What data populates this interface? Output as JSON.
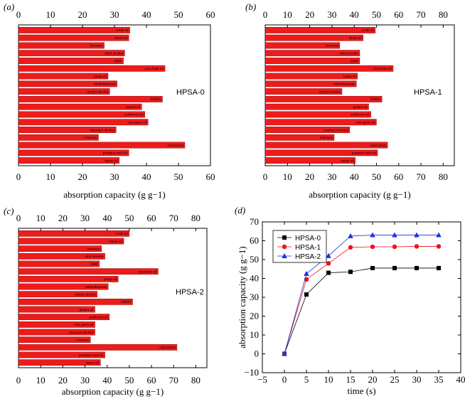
{
  "chart_data": [
    {
      "type": "bar",
      "orientation": "horizontal",
      "panel_label": "(a)",
      "annotation": "HPSA-0",
      "xlabel": "absorption capacity (g g−1)",
      "xlim": [
        0,
        60
      ],
      "ticks": [
        "0",
        "10",
        "20",
        "30",
        "40",
        "50",
        "60"
      ],
      "categories": [
        "crude oil",
        "diesel oil",
        "kerosene",
        "ethyl alcohol",
        "DMF",
        "soya bean oil",
        "pump oil",
        "methylbenzene",
        "methyl alcohol",
        "DMSO",
        "peanut oil",
        "sunflower oil",
        "corn germ oil",
        "isopropyl alcohol",
        "n-hexane",
        "chloroform",
        "pumpkin seed oil",
        "maize oil"
      ],
      "values": [
        34.8,
        34.5,
        26.8,
        33.2,
        32.8,
        45.8,
        28.0,
        30.8,
        28.5,
        45.0,
        38.5,
        39.5,
        40.5,
        30.5,
        25.0,
        52.0,
        34.5,
        31.5
      ]
    },
    {
      "type": "bar",
      "orientation": "horizontal",
      "panel_label": "(b)",
      "annotation": "HPSA-1",
      "xlabel": "absorption capacity (g g−1)",
      "xlim": [
        0,
        85
      ],
      "ticks": [
        "0",
        "10",
        "20",
        "30",
        "40",
        "50",
        "60",
        "70",
        "80"
      ],
      "categories": [
        "crude oil",
        "diesel oil",
        "kerosene",
        "ethyl alcohol",
        "DMF",
        "soya bean oil",
        "pump oil",
        "methylbenzene",
        "methyl alcohol",
        "DMSO",
        "peanut oil",
        "sunflower oil",
        "corn germ oil",
        "isopropyl alcohol",
        "n-hexane",
        "chloroform",
        "pumpkin seed oil",
        "maize oil"
      ],
      "values": [
        49.5,
        44.0,
        33.5,
        42.5,
        42.5,
        57.5,
        41.5,
        41.0,
        34.5,
        52.5,
        46.5,
        47.5,
        50.0,
        38.0,
        31.0,
        55.0,
        50.5,
        40.5
      ]
    },
    {
      "type": "bar",
      "orientation": "horizontal",
      "panel_label": "(c)",
      "annotation": "HPSA-2",
      "xlabel": "absorption capacity (g g−1)",
      "xlim": [
        0,
        85
      ],
      "ticks": [
        "0",
        "10",
        "20",
        "30",
        "40",
        "50",
        "60",
        "70",
        "80"
      ],
      "categories": [
        "crude oil",
        "diesel oil",
        "kerosene",
        "ethyl alcohol",
        "DMF",
        "soya bean oil",
        "pump oil",
        "methylbenzene",
        "methyl alcohol",
        "DMSO",
        "peanut oil",
        "sunflower oil",
        "corn germ oil",
        "isopropyl alcohol",
        "n-hexane",
        "chloroform",
        "pumpkin seed oil",
        "maize oil"
      ],
      "values": [
        50.0,
        47.5,
        37.5,
        39.0,
        36.5,
        63.0,
        45.0,
        40.5,
        35.5,
        51.5,
        34.5,
        41.0,
        34.5,
        34.5,
        32.5,
        71.5,
        39.0,
        37.0
      ]
    },
    {
      "type": "line",
      "panel_label": "(d)",
      "xlabel": "time (s)",
      "ylabel": "absorption capacity (g g−1)",
      "xlim": [
        -5,
        40
      ],
      "ylim": [
        -10,
        70
      ],
      "xticks": [
        "−5",
        "0",
        "5",
        "10",
        "15",
        "20",
        "25",
        "30",
        "35",
        "40"
      ],
      "yticks": [
        "−10",
        "0",
        "10",
        "20",
        "30",
        "40",
        "50",
        "60",
        "70"
      ],
      "x": [
        0,
        5,
        10,
        15,
        20,
        25,
        30,
        35
      ],
      "series": [
        {
          "name": "HPSA-0",
          "color": "#000000",
          "marker": "square",
          "values": [
            0,
            31.5,
            43,
            43.5,
            45.5,
            45.5,
            45.5,
            45.5
          ]
        },
        {
          "name": "HPSA-1",
          "color": "#e8141c",
          "marker": "circle",
          "values": [
            0,
            39.5,
            48,
            56.5,
            56.8,
            56.8,
            57,
            57
          ]
        },
        {
          "name": "HPSA-2",
          "color": "#1a2fe6",
          "marker": "triangle",
          "values": [
            0,
            42.5,
            52,
            62.5,
            63,
            63,
            63,
            63
          ]
        }
      ]
    }
  ]
}
